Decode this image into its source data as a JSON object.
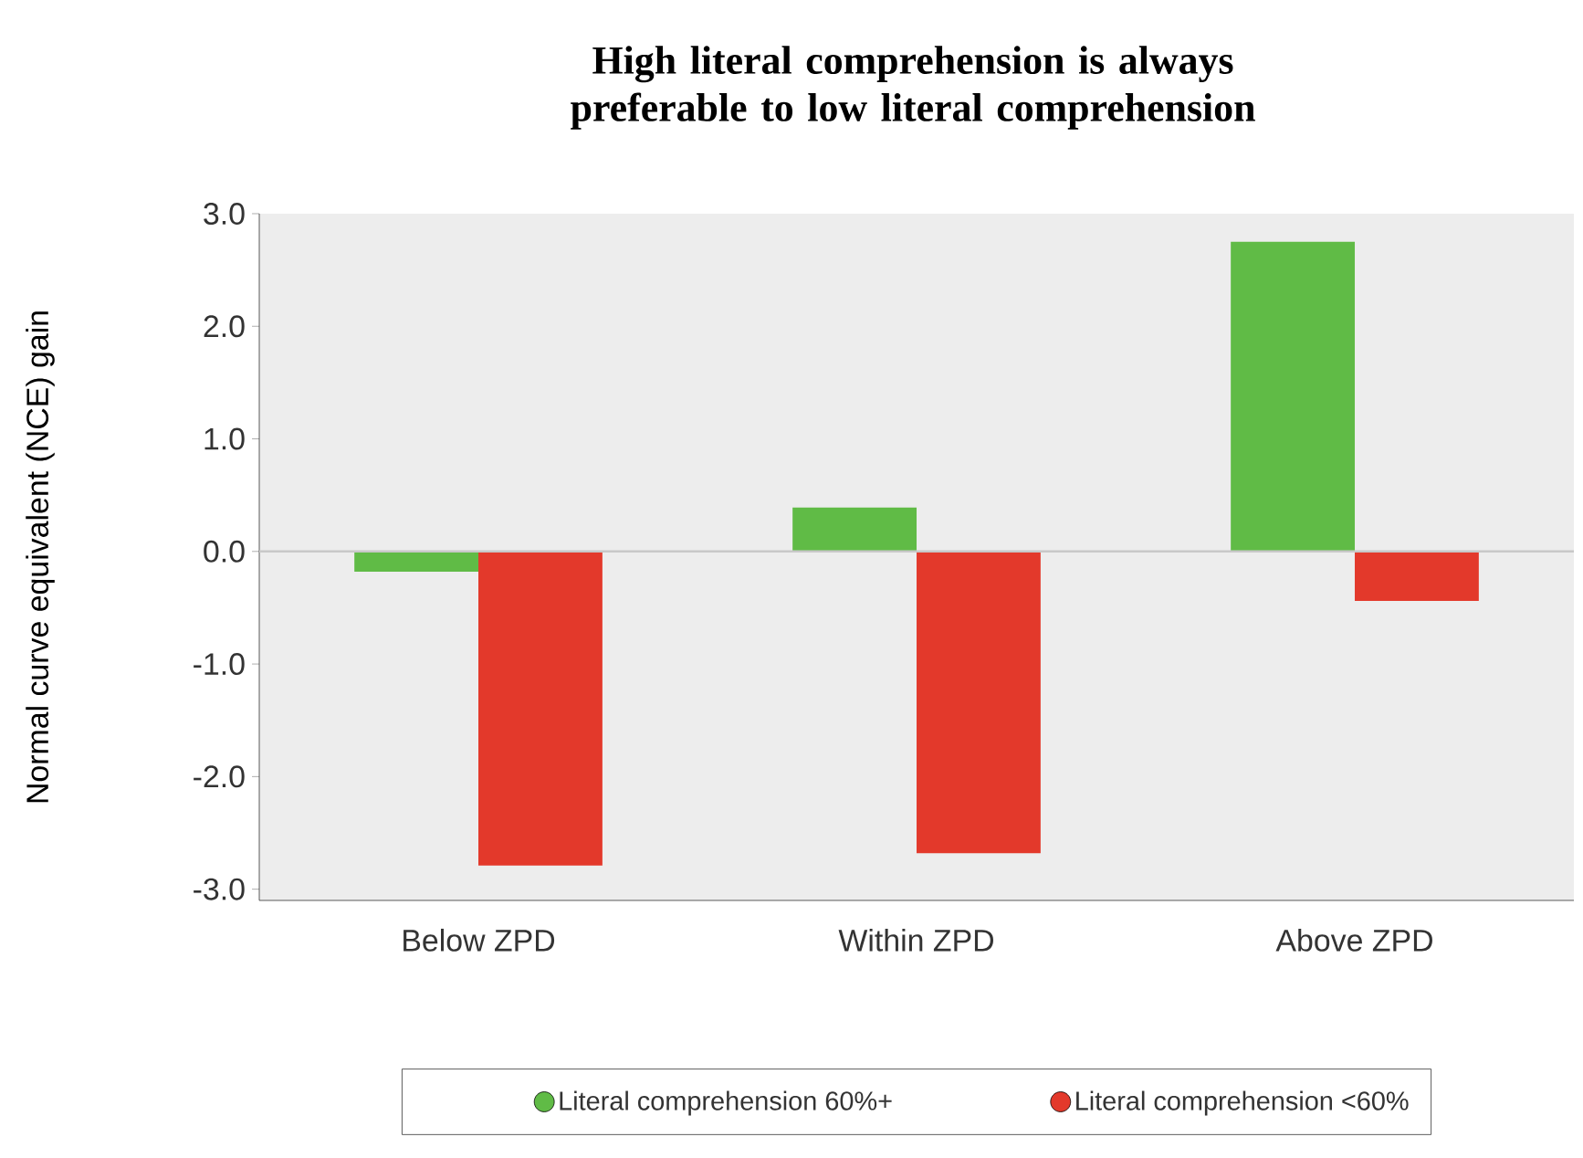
{
  "chart_data": {
    "type": "bar",
    "title": "High literal comprehension is always preferable to low literal comprehension",
    "ylabel": "Normal curve equivalent (NCE) gain",
    "categories": [
      "Below ZPD",
      "Within ZPD",
      "Above ZPD"
    ],
    "series": [
      {
        "name": "Literal comprehension 60%+",
        "color": "#60bb46",
        "values": [
          -0.18,
          0.39,
          2.75
        ]
      },
      {
        "name": "Literal comprehension <60%",
        "color": "#e3392b",
        "values": [
          -2.79,
          -2.68,
          -0.44
        ]
      }
    ],
    "ylim": [
      -3.1,
      3.0
    ],
    "yticks": [
      {
        "value": -3,
        "label": "-3.0"
      },
      {
        "value": -2,
        "label": "-2.0"
      },
      {
        "value": -1,
        "label": "-1.0"
      },
      {
        "value": 0,
        "label": "0.0"
      },
      {
        "value": 1,
        "label": "1.0"
      },
      {
        "value": 2,
        "label": "2.0"
      },
      {
        "value": 3,
        "label": "3.0"
      }
    ],
    "ref_lines": [
      {
        "axis": "y",
        "value": 0,
        "color": "#c8c8c8"
      }
    ],
    "legend": "bottom",
    "marker": "circle",
    "grid": false
  }
}
